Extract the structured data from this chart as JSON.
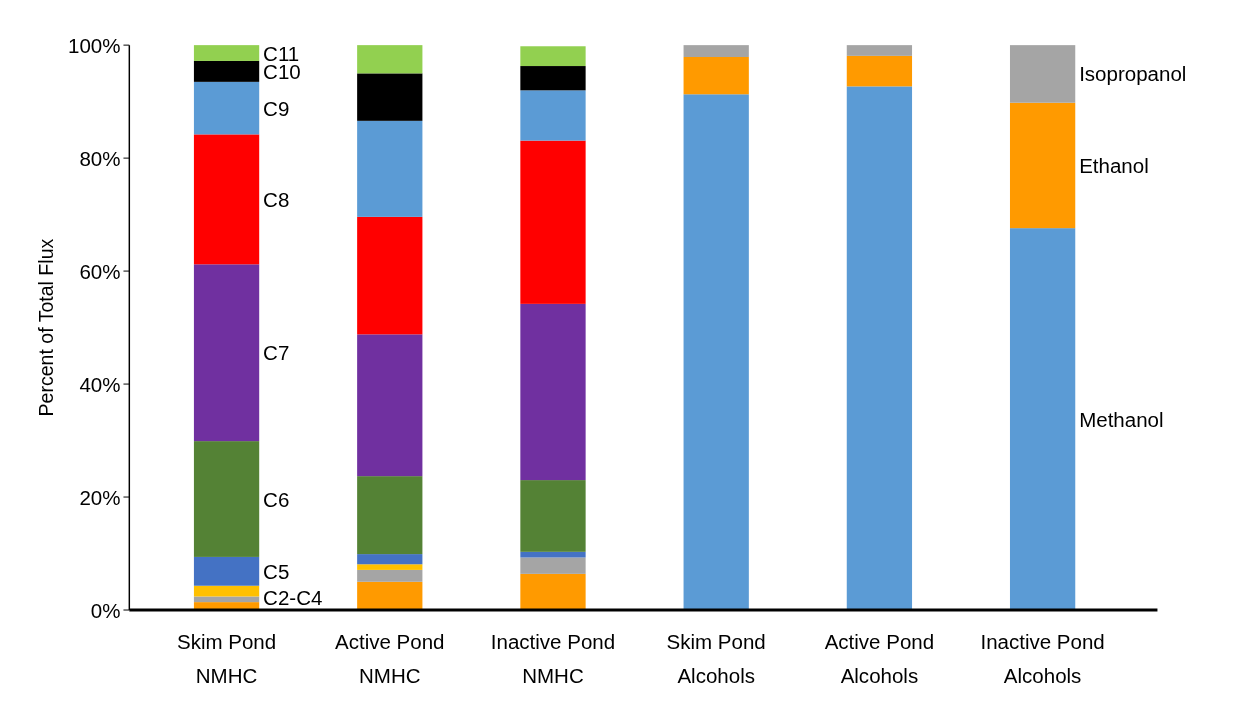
{
  "chart_data": {
    "type": "bar",
    "stacked": true,
    "ylabel": "Percent of Total Flux",
    "categories": [
      "Skim Pond NMHC",
      "Active Pond NMHC",
      "Inactive Pond NMHC",
      "Skim Pond Alcohols",
      "Active Pond Alcohols",
      "Inactive Pond Alcohols"
    ],
    "ylim": [
      0,
      100
    ],
    "yticks": [
      {
        "value": 0,
        "label": "0%"
      },
      {
        "value": 20,
        "label": "20%"
      },
      {
        "value": 40,
        "label": "40%"
      },
      {
        "value": 60,
        "label": "60%"
      },
      {
        "value": 80,
        "label": "80%"
      },
      {
        "value": 100,
        "label": "100%"
      }
    ],
    "grid": false,
    "annotations": [
      {
        "text": "C2-C4",
        "x": "Skim Pond NMHC",
        "y": 2.2
      }
    ],
    "series": [
      {
        "color": "#ff9a00",
        "values": [
          1.4,
          5.0,
          6.4,
          null,
          null,
          null
        ]
      },
      {
        "color": "#a5a5a5",
        "values": [
          1.0,
          2.1,
          2.9,
          null,
          null,
          null
        ]
      },
      {
        "color": "#ffc000",
        "values": [
          1.9,
          1.0,
          null,
          null,
          null,
          null
        ]
      },
      {
        "name": "C5",
        "color": "#4472c4",
        "values": [
          5.1,
          1.8,
          1.0,
          null,
          null,
          null
        ]
      },
      {
        "name": "C6",
        "color": "#548235",
        "values": [
          20.5,
          13.8,
          12.7,
          null,
          null,
          null
        ]
      },
      {
        "name": "C7",
        "color": "#7030a0",
        "values": [
          31.3,
          25.1,
          31.2,
          null,
          null,
          null
        ]
      },
      {
        "name": "C8",
        "color": "#ff0000",
        "values": [
          23.0,
          20.8,
          28.9,
          null,
          null,
          null
        ]
      },
      {
        "name": "C9",
        "color": "#5b9bd5",
        "values": [
          9.3,
          17.0,
          8.9,
          null,
          null,
          null
        ]
      },
      {
        "name": "C10",
        "color": "#000000",
        "values": [
          3.7,
          8.4,
          4.3,
          null,
          null,
          null
        ]
      },
      {
        "name": "C11",
        "color": "#92d050",
        "values": [
          2.8,
          5.0,
          3.5,
          null,
          null,
          null
        ]
      },
      {
        "name": "Methanol",
        "color": "#5b9bd5",
        "values": [
          null,
          null,
          null,
          91.3,
          92.7,
          67.6
        ]
      },
      {
        "name": "Ethanol",
        "color": "#ff9a00",
        "values": [
          null,
          null,
          null,
          6.6,
          5.4,
          22.2
        ]
      },
      {
        "name": "Isopropanol",
        "color": "#a5a5a5",
        "values": [
          null,
          null,
          null,
          2.1,
          1.9,
          10.2
        ]
      }
    ]
  }
}
